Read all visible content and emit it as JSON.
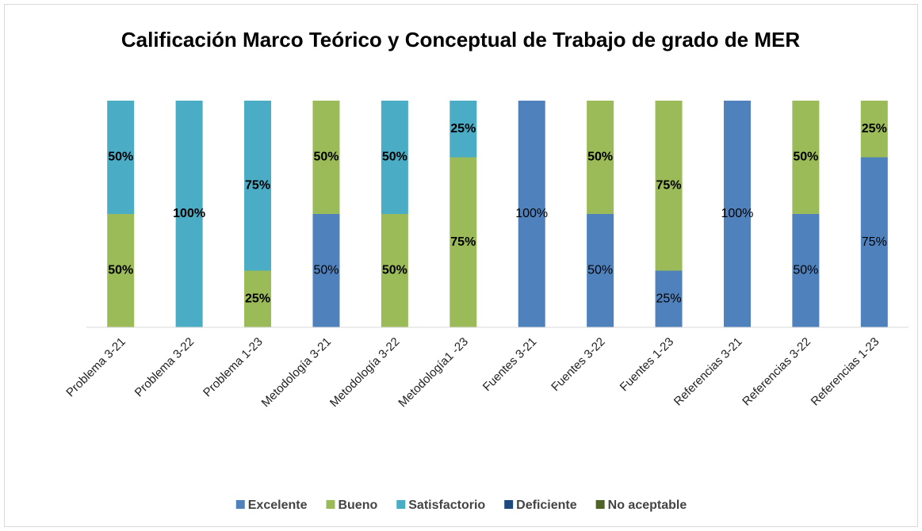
{
  "chart_data": {
    "type": "stacked_bar_percent",
    "title": "Calificación Marco Teórico y Conceptual de Trabajo de grado de MER",
    "categories": [
      "Problema 3-21",
      "Problema 3-22",
      "Problema 1-23",
      "Metodología 3-21",
      "Metodología 3-22",
      "Metodología1 -23",
      "Fuentes 3-21",
      "Fuentes 3-22",
      "Fuentes 1-23",
      "Referencias 3-21",
      "Referencias 3-22",
      "Referencias 1-23"
    ],
    "ylim": [
      0,
      100
    ],
    "legend": "bottom",
    "series": [
      {
        "name": "Excelente",
        "color": "#4f81bd",
        "values": [
          0,
          0,
          0,
          50,
          0,
          0,
          100,
          50,
          25,
          100,
          50,
          75
        ],
        "value_labels": [
          null,
          null,
          null,
          "50%",
          null,
          null,
          "100%",
          "50%",
          "25%",
          "100%",
          "50%",
          "75%"
        ]
      },
      {
        "name": "Bueno",
        "color": "#9bbb59",
        "values": [
          50,
          0,
          25,
          50,
          50,
          75,
          0,
          50,
          75,
          0,
          50,
          25
        ],
        "value_labels": [
          "50%",
          null,
          "25%",
          "50%",
          "50%",
          "75%",
          null,
          "50%",
          "75%",
          null,
          "50%",
          "25%"
        ]
      },
      {
        "name": "Satisfactorio",
        "color": "#4bacc6",
        "values": [
          50,
          100,
          75,
          0,
          50,
          25,
          0,
          0,
          0,
          0,
          0,
          0
        ],
        "value_labels": [
          "50%",
          "100%",
          "75%",
          null,
          "50%",
          "25%",
          null,
          null,
          null,
          null,
          null,
          null
        ]
      },
      {
        "name": "Deficiente",
        "color": "#1f497d",
        "values": [
          0,
          0,
          0,
          0,
          0,
          0,
          0,
          0,
          0,
          0,
          0,
          0
        ]
      },
      {
        "name": "No aceptable",
        "color": "#4f6228",
        "values": [
          0,
          0,
          0,
          0,
          0,
          0,
          0,
          0,
          0,
          0,
          0,
          0
        ]
      }
    ]
  }
}
